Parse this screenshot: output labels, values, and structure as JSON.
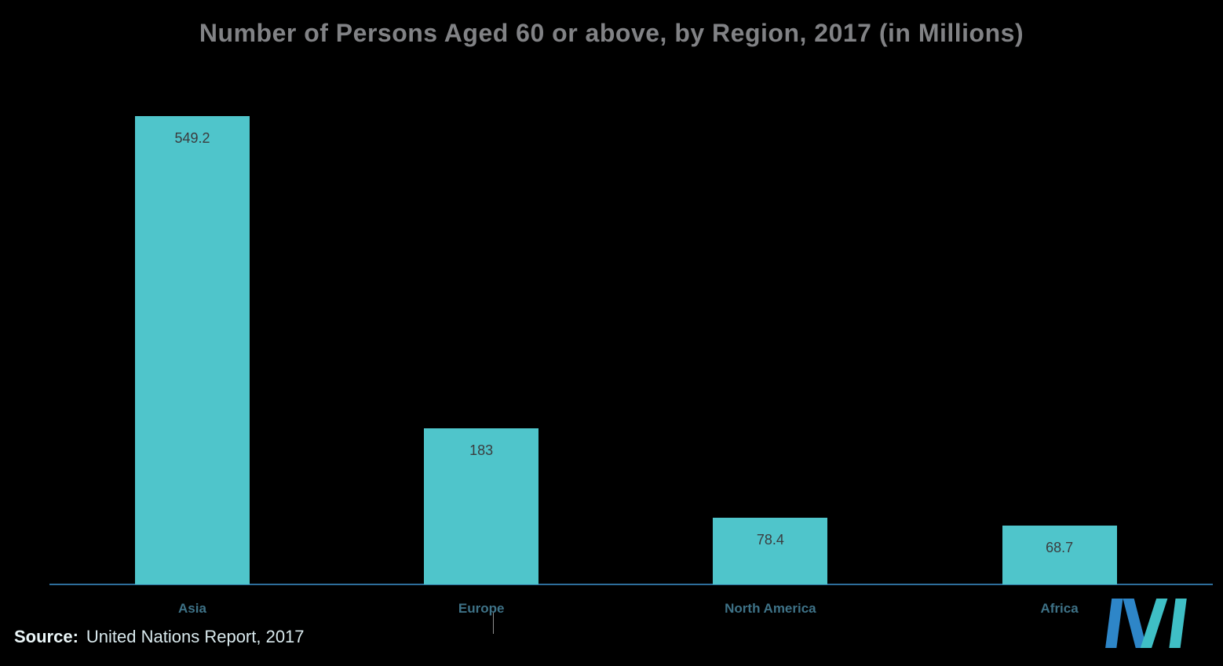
{
  "chart_data": {
    "type": "bar",
    "title": "Number of Persons Aged 60 or above, by Region, 2017 (in Millions)",
    "categories": [
      "Asia",
      "Europe",
      "North America",
      "Africa"
    ],
    "values": [
      549.2,
      183,
      78.4,
      68.7
    ],
    "value_labels": [
      "549.2",
      "183",
      "78.4",
      "68.7"
    ],
    "xlabel": "",
    "ylabel": "",
    "ylim": [
      0,
      560
    ],
    "grid": false,
    "legend": "none",
    "bar_color": "#4FC5CB"
  },
  "source": {
    "label": "Source:",
    "text": "United Nations Report, 2017"
  },
  "logo": {
    "name": "mordor-intelligence-logo",
    "primary_color": "#2E86C8",
    "accent_color": "#3FBFC5"
  },
  "colors": {
    "background": "#000000",
    "title": "#818285",
    "category_label": "#3E7287",
    "value_label": "#3B3C3E",
    "axis": "#2D6E9B"
  }
}
